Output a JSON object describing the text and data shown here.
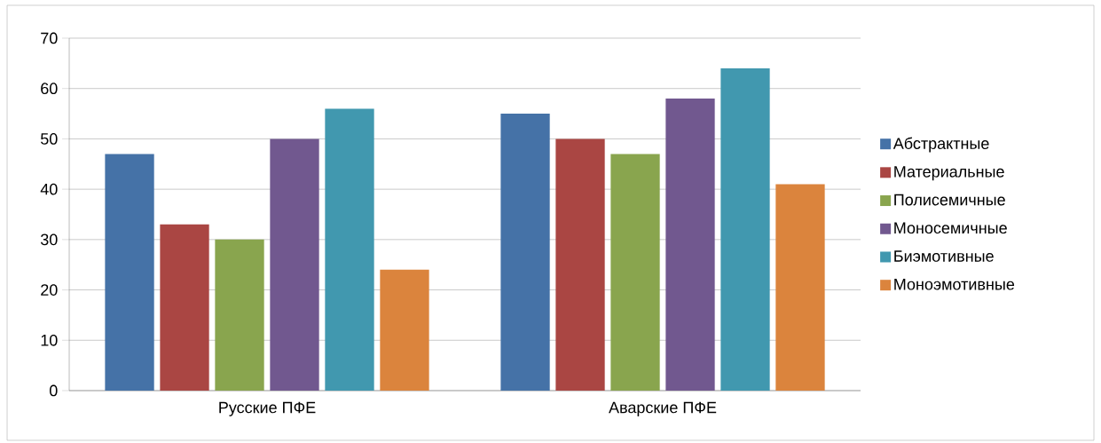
{
  "chart_data": {
    "type": "bar",
    "categories": [
      "Русские ПФЕ",
      "Аварские ПФЕ"
    ],
    "series": [
      {
        "name": "Абстрактные",
        "color": "#4572a7",
        "values": [
          47,
          55
        ]
      },
      {
        "name": "Материальные",
        "color": "#aa4643",
        "values": [
          33,
          50
        ]
      },
      {
        "name": "Полисемичные",
        "color": "#89a54e",
        "values": [
          30,
          47
        ]
      },
      {
        "name": "Моносемичные",
        "color": "#71588f",
        "values": [
          50,
          58
        ]
      },
      {
        "name": "Биэмотивные",
        "color": "#4198af",
        "values": [
          56,
          64
        ]
      },
      {
        "name": "Моноэмотивные",
        "color": "#db843d",
        "values": [
          24,
          41
        ]
      }
    ],
    "ylim": [
      0,
      70
    ],
    "yticks": [
      0,
      10,
      20,
      30,
      40,
      50,
      60,
      70
    ],
    "grid": "y",
    "legend": "right"
  }
}
